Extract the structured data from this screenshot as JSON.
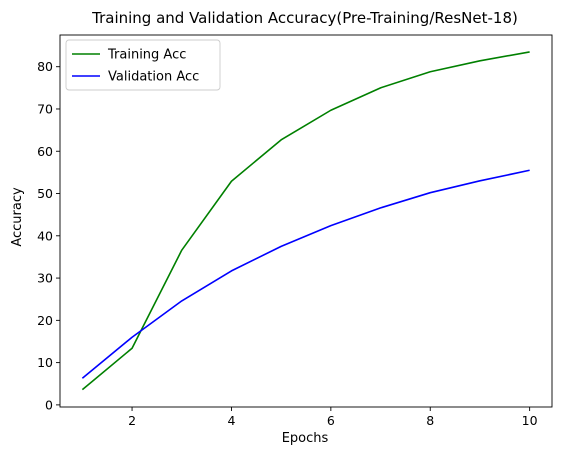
{
  "chart_data": {
    "type": "line",
    "title": "Training and Validation Accuracy(Pre-Training/ResNet-18)",
    "xlabel": "Epochs",
    "ylabel": "Accuracy",
    "x": [
      1,
      2,
      3,
      4,
      5,
      6,
      7,
      8,
      9,
      10
    ],
    "xlim": [
      0.55,
      10.45
    ],
    "ylim": [
      -0.5,
      87.5
    ],
    "xticks": [
      2,
      4,
      6,
      8,
      10
    ],
    "yticks": [
      0,
      10,
      20,
      30,
      40,
      50,
      60,
      70,
      80
    ],
    "grid": false,
    "legend_position": "top-left",
    "series": [
      {
        "name": "Training Acc",
        "color": "#008000",
        "values": [
          3.6,
          13.4,
          36.6,
          52.9,
          62.7,
          69.7,
          75.0,
          78.8,
          81.4,
          83.5
        ]
      },
      {
        "name": "Validation Acc",
        "color": "#0000ff",
        "values": [
          6.3,
          16.0,
          24.6,
          31.7,
          37.5,
          42.4,
          46.6,
          50.2,
          53.0,
          55.5
        ]
      }
    ]
  }
}
